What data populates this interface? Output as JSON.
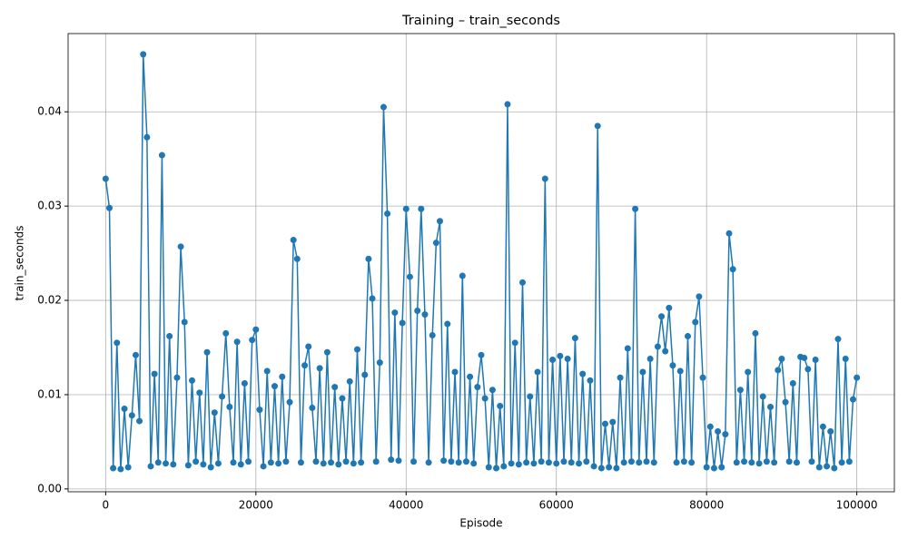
{
  "chart_data": {
    "type": "line",
    "title": "Training – train_seconds",
    "x_label": "Episode",
    "y_label": "train_seconds",
    "x": [
      0,
      500,
      1000,
      1500,
      2000,
      2500,
      3000,
      3500,
      4000,
      4500,
      5000,
      5500,
      6000,
      6500,
      7000,
      7500,
      8000,
      8500,
      9000,
      9500,
      10000,
      10500,
      11000,
      11500,
      12000,
      12500,
      13000,
      13500,
      14000,
      14500,
      15000,
      15500,
      16000,
      16500,
      17000,
      17500,
      18000,
      18500,
      19000,
      19500,
      20000,
      20500,
      21000,
      21500,
      22000,
      22500,
      23000,
      23500,
      24000,
      24500,
      25000,
      25500,
      26000,
      26500,
      27000,
      27500,
      28000,
      28500,
      29000,
      29500,
      30000,
      30500,
      31000,
      31500,
      32000,
      32500,
      33000,
      33500,
      34000,
      34500,
      35000,
      35500,
      36000,
      36500,
      37000,
      37500,
      38000,
      38500,
      39000,
      39500,
      40000,
      40500,
      41000,
      41500,
      42000,
      42500,
      43000,
      43500,
      44000,
      44500,
      45000,
      45500,
      46000,
      46500,
      47000,
      47500,
      48000,
      48500,
      49000,
      49500,
      50000,
      50500,
      51000,
      51500,
      52000,
      52500,
      53000,
      53500,
      54000,
      54500,
      55000,
      55500,
      56000,
      56500,
      57000,
      57500,
      58000,
      58500,
      59000,
      59500,
      60000,
      60500,
      61000,
      61500,
      62000,
      62500,
      63000,
      63500,
      64000,
      64500,
      65000,
      65500,
      66000,
      66500,
      67000,
      67500,
      68000,
      68500,
      69000,
      69500,
      70000,
      70500,
      71000,
      71500,
      72000,
      72500,
      73000,
      73500,
      74000,
      74500,
      75000,
      75500,
      76000,
      76500,
      77000,
      77500,
      78000,
      78500,
      79000,
      79500,
      80000,
      80500,
      81000,
      81500,
      82000,
      82500,
      83000,
      83500,
      84000,
      84500,
      85000,
      85500,
      86000,
      86500,
      87000,
      87500,
      88000,
      88500,
      89000,
      89500,
      90000,
      90500,
      91000,
      91500,
      92000,
      92500,
      93000,
      93500,
      94000,
      94500,
      95000,
      95500,
      96000,
      96500,
      97000,
      97500,
      98000,
      98500,
      99000,
      99500,
      100000
    ],
    "series": [
      {
        "color": "#1f77b4",
        "values": [
          0.0329,
          0.0298,
          0.0022,
          0.0155,
          0.0021,
          0.0085,
          0.0023,
          0.0078,
          0.0142,
          0.0072,
          0.0461,
          0.0373,
          0.0024,
          0.0122,
          0.0028,
          0.0354,
          0.0027,
          0.0162,
          0.0026,
          0.0118,
          0.0257,
          0.0177,
          0.0025,
          0.0115,
          0.0029,
          0.0102,
          0.0026,
          0.0145,
          0.0023,
          0.0081,
          0.0027,
          0.0098,
          0.0165,
          0.0087,
          0.0028,
          0.0156,
          0.0026,
          0.0112,
          0.0029,
          0.0158,
          0.0169,
          0.0084,
          0.0024,
          0.0125,
          0.0028,
          0.0109,
          0.0027,
          0.0119,
          0.0029,
          0.0092,
          0.0264,
          0.0244,
          0.0028,
          0.0131,
          0.0151,
          0.0086,
          0.0029,
          0.0128,
          0.0027,
          0.0145,
          0.0028,
          0.0108,
          0.0026,
          0.0096,
          0.0029,
          0.0114,
          0.0027,
          0.0148,
          0.0028,
          0.0121,
          0.0244,
          0.0202,
          0.0029,
          0.0134,
          0.0405,
          0.0292,
          0.0031,
          0.0187,
          0.003,
          0.0176,
          0.0297,
          0.0225,
          0.0029,
          0.0189,
          0.0297,
          0.0185,
          0.0028,
          0.0163,
          0.0261,
          0.0284,
          0.003,
          0.0175,
          0.0029,
          0.0124,
          0.0028,
          0.0226,
          0.0029,
          0.0119,
          0.0027,
          0.0108,
          0.0142,
          0.0096,
          0.0023,
          0.0105,
          0.0022,
          0.0088,
          0.0024,
          0.0408,
          0.0027,
          0.0155,
          0.0026,
          0.0219,
          0.0028,
          0.0098,
          0.0027,
          0.0124,
          0.0029,
          0.0329,
          0.0028,
          0.0137,
          0.0027,
          0.0141,
          0.0029,
          0.0138,
          0.0028,
          0.016,
          0.0027,
          0.0122,
          0.0029,
          0.0115,
          0.0024,
          0.0385,
          0.0022,
          0.0069,
          0.0023,
          0.0071,
          0.0022,
          0.0118,
          0.0028,
          0.0149,
          0.0029,
          0.0297,
          0.0028,
          0.0124,
          0.0029,
          0.0138,
          0.0028,
          0.0151,
          0.0183,
          0.0146,
          0.0192,
          0.0131,
          0.0028,
          0.0125,
          0.0029,
          0.0162,
          0.0028,
          0.0177,
          0.0204,
          0.0118,
          0.0023,
          0.0066,
          0.0022,
          0.0061,
          0.0023,
          0.0058,
          0.0271,
          0.0233,
          0.0028,
          0.0105,
          0.0029,
          0.0124,
          0.0028,
          0.0165,
          0.0027,
          0.0098,
          0.0029,
          0.0087,
          0.0028,
          0.0126,
          0.0138,
          0.0092,
          0.0029,
          0.0112,
          0.0028,
          0.014,
          0.0139,
          0.0127,
          0.0029,
          0.0137,
          0.0023,
          0.0066,
          0.0024,
          0.0061,
          0.0022,
          0.0159,
          0.0028,
          0.0138,
          0.0029,
          0.0095,
          0.0118
        ]
      }
    ],
    "xlim": [
      -5000,
      105000
    ],
    "xticks": [
      0,
      20000,
      40000,
      60000,
      80000,
      100000
    ],
    "ylim": [
      -0.0003,
      0.0483
    ],
    "yticks": [
      {
        "value": 0,
        "label": "0.00"
      },
      0.01,
      0.02,
      0.03,
      0.04
    ],
    "grid": true
  }
}
